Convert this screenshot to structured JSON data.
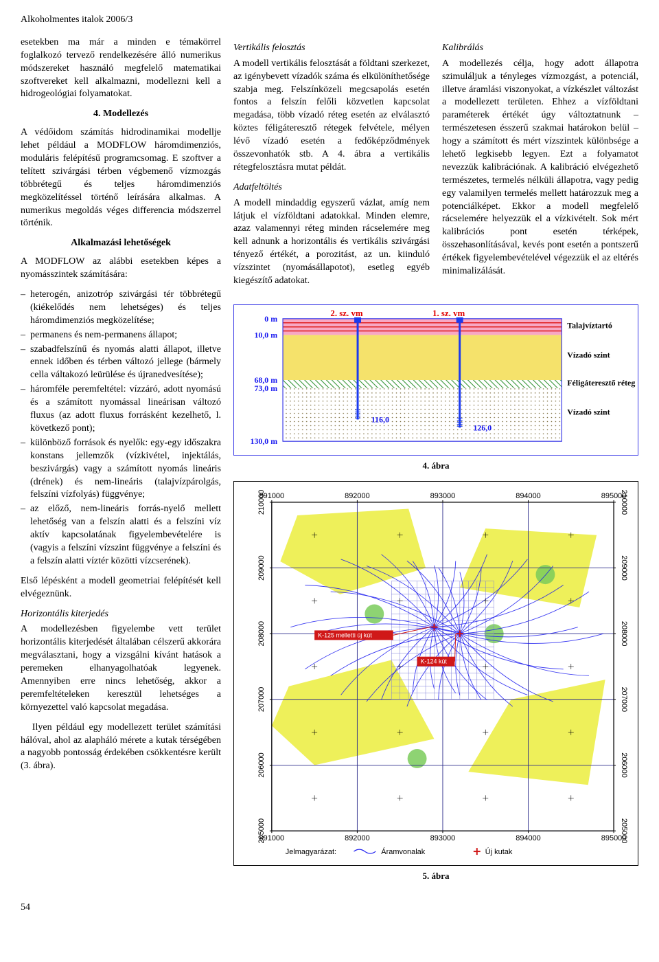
{
  "header": "Alkoholmentes italok 2006/3",
  "page_number": "54",
  "col1": {
    "intro": "esetekben ma már a minden e témakörrel foglalkozó tervező rendelkezésére álló numerikus módszereket használó megfelelő matematikai szoftvereket kell alkalmazni, modellezni kell a hidrogeológiai folyamatokat.",
    "h_model": "4. Modellezés",
    "p_model1": "A védőidom számítás hidrodinamikai modellje lehet például a MODFLOW háromdimenziós, moduláris felépítésű programcsomag. E szoftver a telített szivárgási térben végbemenő vízmozgás többrétegű és teljes háromdimenziós megközelítéssel történő leírására alkalmas. A numerikus megoldás véges differencia módszerrel történik.",
    "h_alk": "Alkalmazási lehetőségek",
    "p_alk_intro": "A MODFLOW az alábbi esetekben képes a nyomásszintek számítására:",
    "alk_items": [
      "heterogén, anizotróp szivárgási tér többrétegű (kiékelődés nem lehetséges) és teljes háromdimenziós megközelítése;",
      "permanens és nem-permanens állapot;",
      "szabadfelszínű és nyomás alatti állapot, illetve ennek időben és térben változó jellege (bármely cella váltakozó leürülése és újranedvesítése);",
      "háromféle peremfeltétel: vízzáró, adott nyomású és a számított nyomással lineárisan változó fluxus (az adott fluxus forrásként kezelhető, l. következő pont);",
      "különböző források és nyelők: egy-egy időszakra konstans jellemzők (vízkivétel, injektálás, beszivárgás) vagy a számított nyomás lineáris (drének) és nem-lineáris (talajvízpárolgás, felszíni vízfolyás) függvénye;",
      "az előző, nem-lineáris forrás-nyelő mellett lehetőség van a felszín alatti és a felszíni víz aktív kapcsolatának figyelembevételére is (vagyis a felszíni vízszint függvénye a felszíni és a felszín alatti víztér közötti vízcserének)."
    ],
    "p_alk_out": "Első lépésként a modell geometriai felépítését kell elvégeznünk.",
    "h_horiz": "Horizontális kiterjedés",
    "p_horiz1": "A modellezésben figyelembe vett terület horizontális kiterjedését általában célszerű akkorára megválasztani, hogy a vizsgálni kívánt hatások a peremeken elhanyagolhatóak legyenek. Amennyiben erre nincs lehetőség, akkor a peremfeltételeken keresztül lehetséges a környezettel való kapcsolat megadása.",
    "p_horiz2": "Ilyen például egy modellezett terület számítási hálóval, ahol az alapháló mérete a kutak térségében a nagyobb pontosság érdekében csökkentésre került (3. ábra)."
  },
  "col2": {
    "h_vert": "Vertikális felosztás",
    "p_vert": "A modell vertikális felosztását a földtani szerkezet, az igénybevett vízadók száma és elkülöníthetősége szabja meg. Felszínközeli megcsapolás esetén fontos a felszín felőli közvetlen kapcsolat megadása, több vízadó réteg esetén az elválasztó köztes féligáteresztő rétegek felvétele, mélyen lévő vízadó esetén a fedőképződmények összevonhatók stb. A 4. ábra a vertikális rétegfelosztásra mutat példát.",
    "h_adat": "Adatfeltöltés",
    "p_adat": "A modell mindaddig egyszerű vázlat, amíg nem látjuk el vízföldtani adatokkal. Minden elemre, azaz valamennyi réteg minden rácselemére meg kell adnunk a horizontális és vertikális szivárgási tényező értékét, a porozitást, az un. kiinduló vízszintet (nyomásállapotot), esetleg egyéb kiegészítő adatokat."
  },
  "col3": {
    "h_kalib": "Kalibrálás",
    "p_kalib": "A modellezés célja, hogy adott állapotra szimuláljuk a tényleges vízmozgást, a potenciál, illetve áramlási viszonyokat, a vízkészlet változást a modellezett területen. Ehhez a vízföldtani paraméterek értékét úgy változtatnunk – természetesen ésszerű szakmai határokon belül – hogy a számított és mért vízszintek különbsége a lehető legkisebb legyen. Ezt a folyamatot nevezzük kalibrációnak. A kalibráció elvégezhető természetes, termelés nélküli állapotra, vagy pedig egy valamilyen termelés mellett határozzuk meg a potenciálképet. Ekkor a modell megfelelő rácselemére helyezzük el a vízkivételt. Sok mért kalibrációs pont esetén térképek, összehasonlításával, kevés pont esetén a pontszerű értékek figyelembevételével végezzük el az eltérés minimalizálását."
  },
  "fig4": {
    "caption": "4. ábra",
    "top_labels": [
      "2. sz. vm",
      "1. sz. vm"
    ],
    "depths": [
      "0 m",
      "10,0 m",
      "68,0 m",
      "73,0 m",
      "130,0 m"
    ],
    "mid_labels": [
      "116,0",
      "126,0"
    ],
    "legend": [
      "Talajvíztartó",
      "Vízadó szint",
      "Féligáteresztő réteg",
      "Vízadó szint"
    ],
    "colors": {
      "border": "#3a3ae6",
      "pink": "#f7a8c4",
      "red_line": "#e02020",
      "yellow": "#f5e26b",
      "blue_well": "#1a3af0",
      "blue_num": "#1a3af0"
    }
  },
  "fig5": {
    "caption": "5. ábra",
    "x_ticks": [
      "891000",
      "892000",
      "893000",
      "894000",
      "895000"
    ],
    "y_ticks": [
      "205000",
      "206000",
      "207000",
      "208000",
      "209000",
      "210000"
    ],
    "well_labels": [
      "K-125 melletti új kút",
      "K-124 kút"
    ],
    "legend_title": "Jelmagyarázat:",
    "legend_items": [
      "Áramvonalak",
      "Új kutak"
    ],
    "colors": {
      "grid": "#2a2a8a",
      "grid_fine": "#7a7ad8",
      "yellow_patch": "#eef05a",
      "green_patch": "#7acb5a",
      "stream": "#1a1af0",
      "red_box": "#d01818",
      "cross": "#d01818"
    }
  }
}
